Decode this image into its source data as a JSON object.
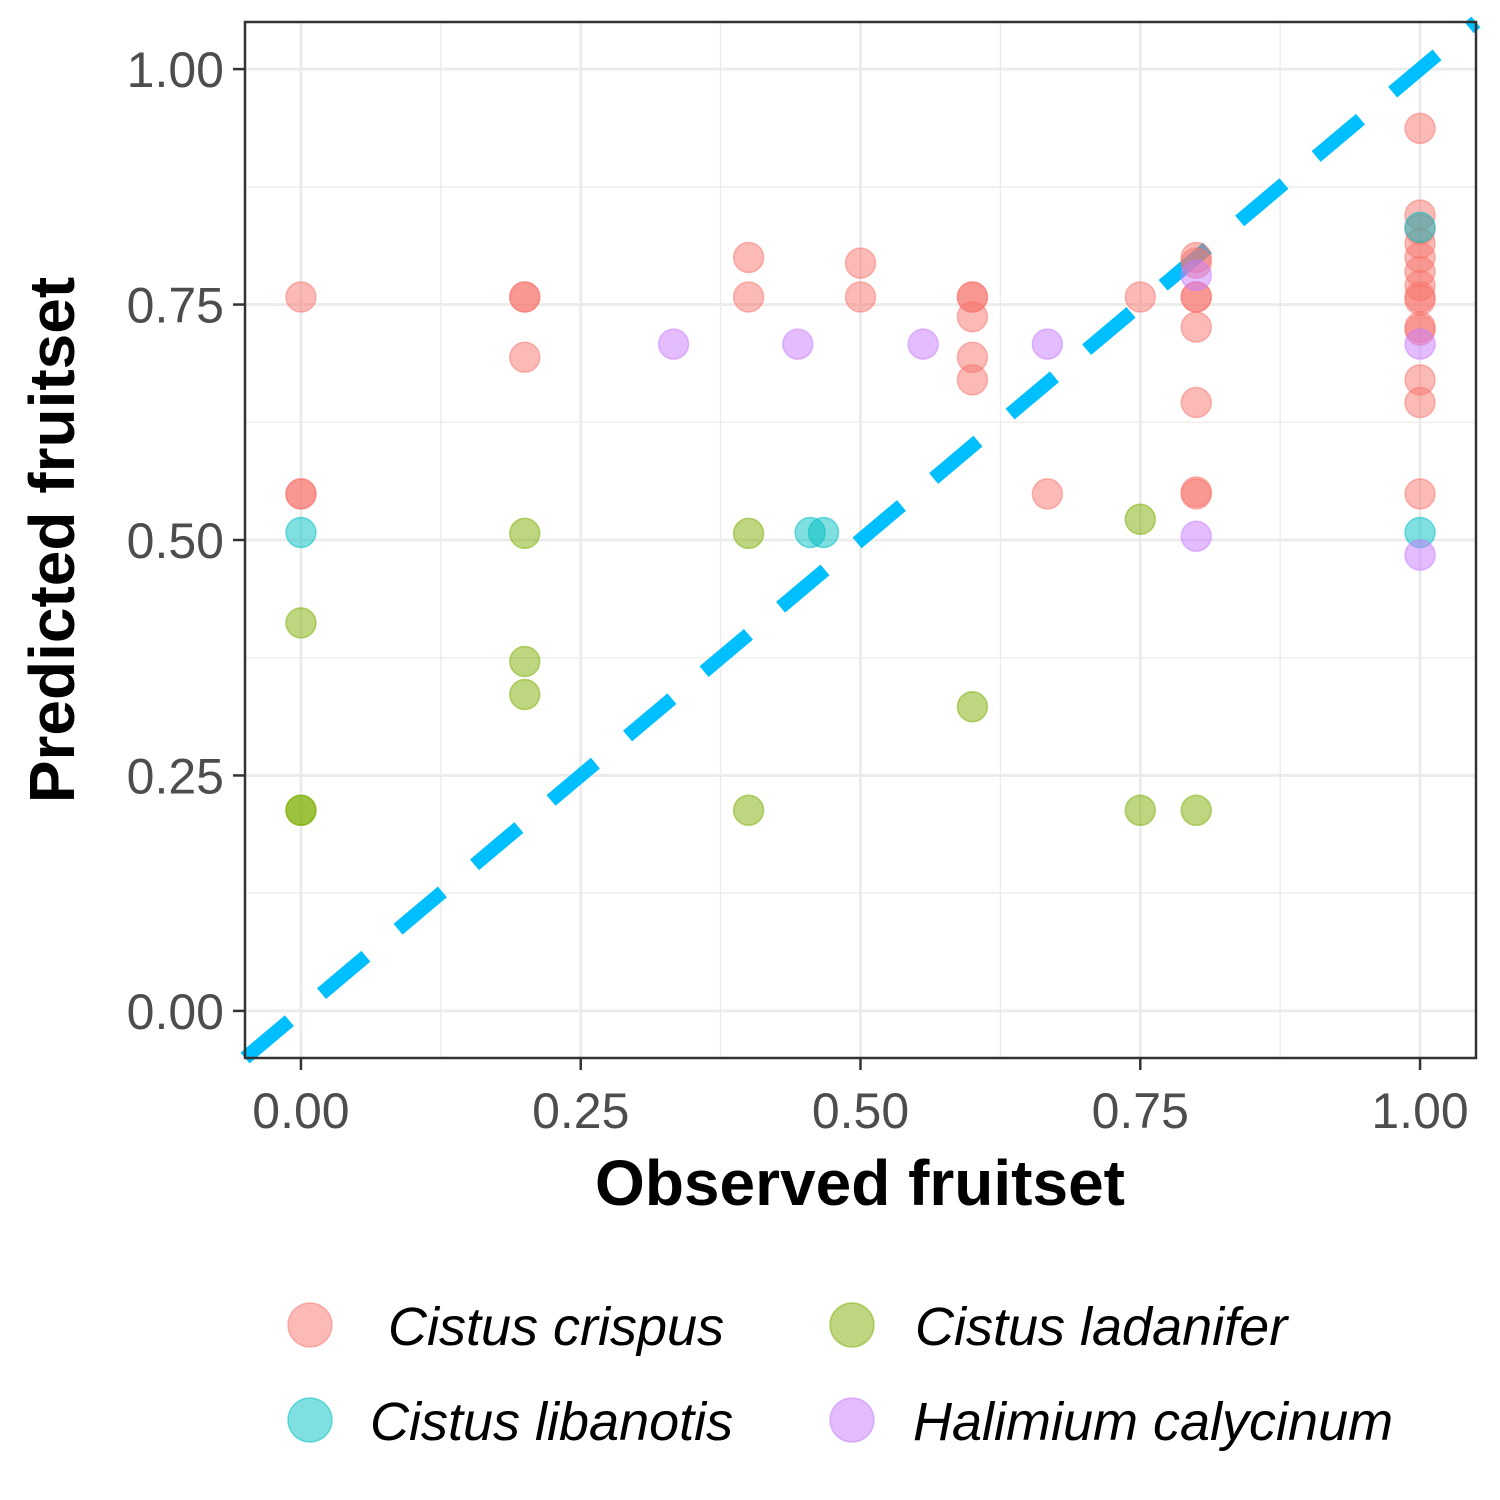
{
  "chart_data": {
    "type": "scatter",
    "title": "",
    "xlabel": "Observed fruitset",
    "ylabel": "Predicted fruitset",
    "xlim": [
      -0.05,
      1.05
    ],
    "ylim": [
      -0.05,
      1.05
    ],
    "x_ticks": [
      "0.00",
      "0.25",
      "0.50",
      "0.75",
      "1.00"
    ],
    "y_ticks": [
      "0.00",
      "0.25",
      "0.50",
      "0.75",
      "1.00"
    ],
    "tick_values": [
      0,
      0.25,
      0.5,
      0.75,
      1.0
    ],
    "minor_grid": [
      0.125,
      0.375,
      0.625,
      0.875
    ],
    "grid": true,
    "legend_position": "bottom",
    "reference_line": {
      "type": "identity",
      "style": "dashed",
      "color": "#00BFFF"
    },
    "series": [
      {
        "name": "Cistus crispus",
        "color": "#F8766D",
        "points": [
          [
            0,
            0.758
          ],
          [
            0,
            0.549
          ],
          [
            0,
            0.549
          ],
          [
            0.2,
            0.758
          ],
          [
            0.2,
            0.758
          ],
          [
            0.2,
            0.694
          ],
          [
            0.4,
            0.8
          ],
          [
            0.4,
            0.758
          ],
          [
            0.5,
            0.794
          ],
          [
            0.5,
            0.758
          ],
          [
            0.6,
            0.758
          ],
          [
            0.6,
            0.758
          ],
          [
            0.6,
            0.737
          ],
          [
            0.6,
            0.694
          ],
          [
            0.6,
            0.67
          ],
          [
            0.667,
            0.549
          ],
          [
            0.75,
            0.758
          ],
          [
            0.8,
            0.8
          ],
          [
            0.8,
            0.794
          ],
          [
            0.8,
            0.758
          ],
          [
            0.8,
            0.758
          ],
          [
            0.8,
            0.726
          ],
          [
            0.8,
            0.646
          ],
          [
            0.8,
            0.551
          ],
          [
            0.8,
            0.549
          ],
          [
            1.0,
            0.937
          ],
          [
            1.0,
            0.845
          ],
          [
            1.0,
            0.83
          ],
          [
            1.0,
            0.815
          ],
          [
            1.0,
            0.8
          ],
          [
            1.0,
            0.785
          ],
          [
            1.0,
            0.77
          ],
          [
            1.0,
            0.758
          ],
          [
            1.0,
            0.755
          ],
          [
            1.0,
            0.726
          ],
          [
            1.0,
            0.723
          ],
          [
            1.0,
            0.67
          ],
          [
            1.0,
            0.646
          ],
          [
            1.0,
            0.549
          ]
        ]
      },
      {
        "name": "Cistus ladanifer",
        "color": "#7CAE00",
        "points": [
          [
            0,
            0.412
          ],
          [
            0,
            0.213
          ],
          [
            0,
            0.213
          ],
          [
            0.2,
            0.507
          ],
          [
            0.2,
            0.371
          ],
          [
            0.2,
            0.336
          ],
          [
            0.4,
            0.507
          ],
          [
            0.4,
            0.213
          ],
          [
            0.6,
            0.323
          ],
          [
            0.75,
            0.522
          ],
          [
            0.75,
            0.213
          ],
          [
            0.8,
            0.213
          ]
        ]
      },
      {
        "name": "Cistus libanotis",
        "color": "#00BFC4",
        "points": [
          [
            0,
            0.508
          ],
          [
            0.455,
            0.508
          ],
          [
            0.467,
            0.508
          ],
          [
            1.0,
            0.832
          ],
          [
            1.0,
            0.508
          ]
        ]
      },
      {
        "name": "Halimium calycinum",
        "color": "#C77CFF",
        "points": [
          [
            0.333,
            0.708
          ],
          [
            0.444,
            0.708
          ],
          [
            0.556,
            0.708
          ],
          [
            0.667,
            0.708
          ],
          [
            0.8,
            0.781
          ],
          [
            0.8,
            0.504
          ],
          [
            1.0,
            0.708
          ],
          [
            1.0,
            0.484
          ]
        ]
      }
    ]
  }
}
